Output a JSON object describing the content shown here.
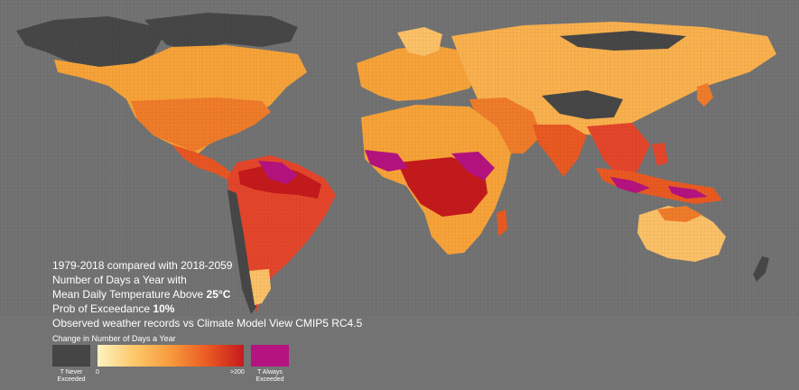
{
  "info": {
    "line1": "1979-2018 compared with 2018-2059",
    "line2": "Number of Days a Year with",
    "line3_prefix": "Mean Daily Temperature Above ",
    "line3_value": "25°C",
    "line4_prefix": "Prob of Exceedance ",
    "line4_value": "10%",
    "line5": "Observed weather records vs Climate Model View CMIP5 RC4.5"
  },
  "legend": {
    "title": "Change in Number of Days a Year",
    "never_label": "T Never Exceeded",
    "always_label": "T Always Exceeded",
    "min_label": "0",
    "max_label": ">200",
    "colors": {
      "background": "#737373",
      "never": "#454545",
      "always": "#b5137f",
      "gradient": [
        "#fdf3c2",
        "#fdc86a",
        "#f79a3c",
        "#ea5a22",
        "#c51a1c"
      ]
    }
  }
}
